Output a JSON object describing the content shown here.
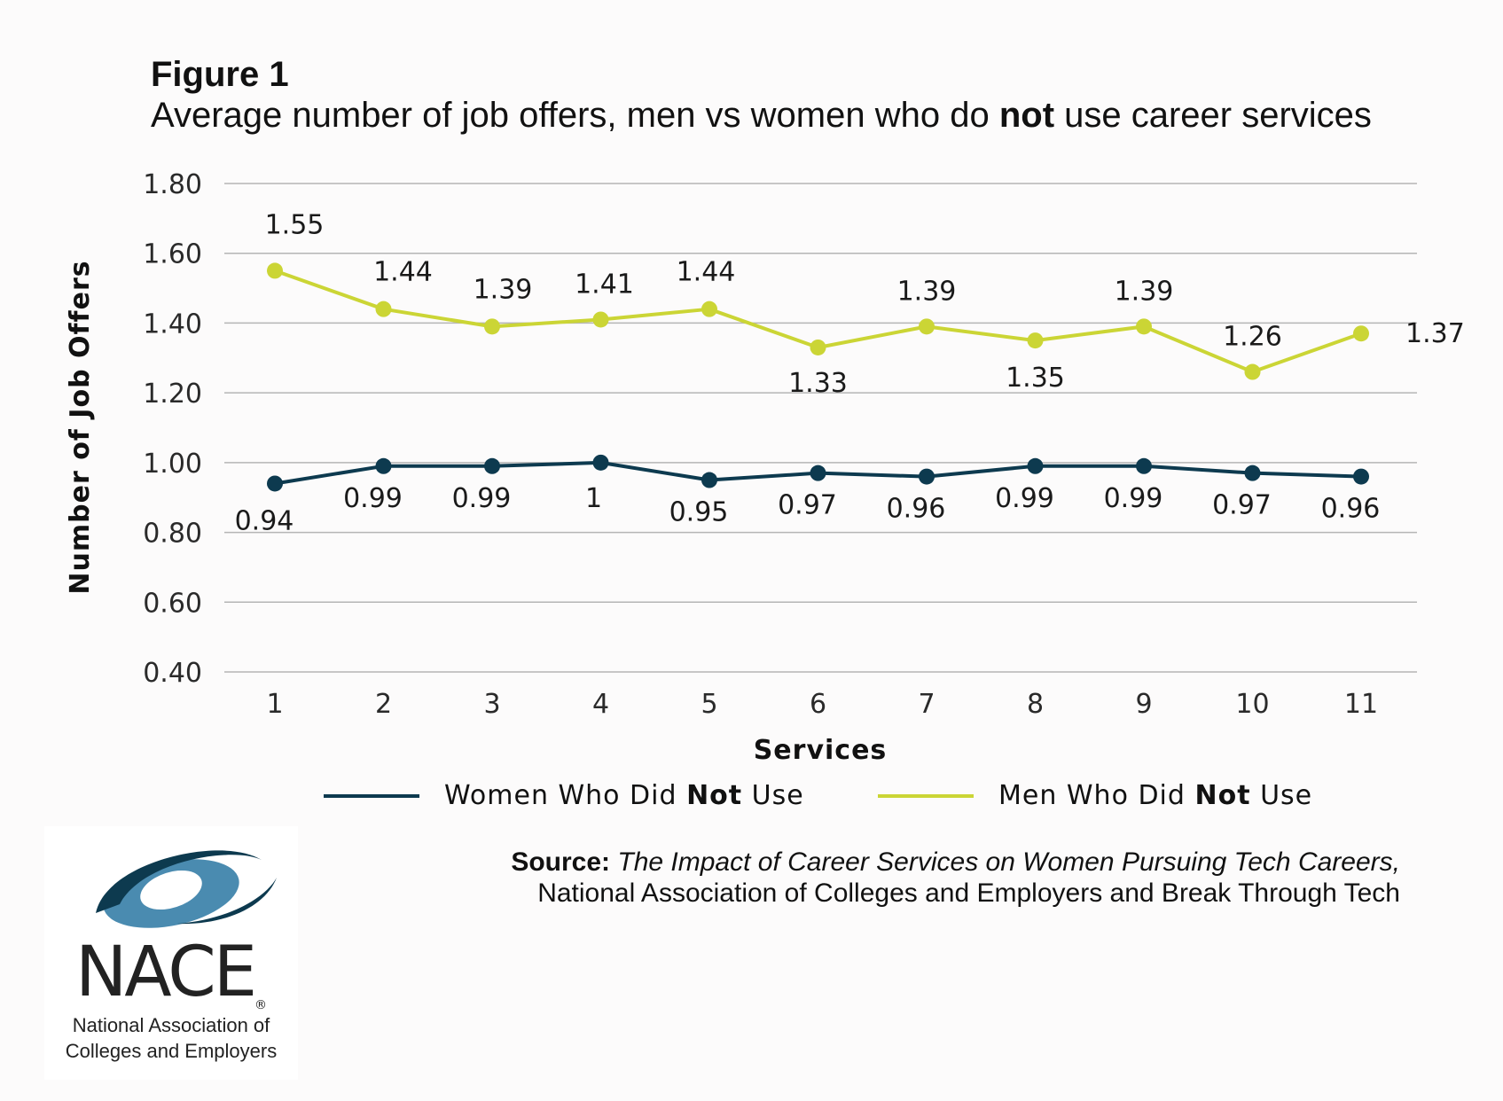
{
  "figure": {
    "label": "Figure 1",
    "title_pre": "Average number of job offers, men vs women who do ",
    "title_bold": "not",
    "title_post": " use career services"
  },
  "chart_data": {
    "type": "line",
    "x_label": "Services",
    "y_label": "Number of Job Offers",
    "categories": [
      "1",
      "2",
      "3",
      "4",
      "5",
      "6",
      "7",
      "8",
      "9",
      "10",
      "11"
    ],
    "y_ticks": [
      "0.40",
      "0.60",
      "0.80",
      "1.00",
      "1.20",
      "1.40",
      "1.60",
      "1.80"
    ],
    "ylim": [
      0.4,
      1.8
    ],
    "grid": true,
    "series": [
      {
        "name": "Women Who Did Not Use",
        "color": "#0d3a4f",
        "values": [
          0.94,
          0.99,
          0.99,
          1,
          0.95,
          0.97,
          0.96,
          0.99,
          0.99,
          0.97,
          0.96
        ],
        "labels": [
          "0.94",
          "0.99",
          "0.99",
          "1",
          "0.95",
          "0.97",
          "0.96",
          "0.99",
          "0.99",
          "0.97",
          "0.96"
        ]
      },
      {
        "name": "Men Who Did Not Use",
        "color": "#cbd535",
        "values": [
          1.55,
          1.44,
          1.39,
          1.41,
          1.44,
          1.33,
          1.39,
          1.35,
          1.39,
          1.26,
          1.37
        ],
        "labels": [
          "1.55",
          "1.44",
          "1.39",
          "1.41",
          "1.44",
          "1.33",
          "1.39",
          "1.35",
          "1.39",
          "1.26",
          "1.37"
        ]
      }
    ]
  },
  "legend": {
    "women": {
      "pre": "Women Who Did ",
      "bold": "Not",
      "post": " Use"
    },
    "men": {
      "pre": "Men Who Did ",
      "bold": "Not",
      "post": " Use"
    }
  },
  "source": {
    "label": "Source:",
    "title": "The Impact of Career Services on Women Pursuing Tech Careers,",
    "line2": "National Association of Colleges and Employers and Break Through Tech"
  },
  "logo": {
    "word": "NACE",
    "reg": "®",
    "sub_line1": "National Association of",
    "sub_line2": "Colleges and Employers",
    "colors": {
      "dark": "#0d3a4f",
      "light": "#4a8bb0",
      "text": "#222222"
    }
  }
}
